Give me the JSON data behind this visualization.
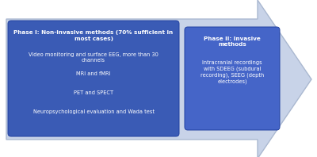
{
  "bg_color": "#ffffff",
  "arrow_color": "#c8d3e8",
  "arrow_edge_color": "#aab8d0",
  "box1_color": "#3a5bb5",
  "box2_color": "#4565c8",
  "box1_title": "Phase I: Non-invasive methods (70% sufficient in\nmost cases)",
  "box1_lines": [
    "Video monitoring and surface EEG, more than 30\nchannels",
    "MRI and fMRI",
    "PET and SPECT",
    "Neuropsychological evaluation and Wada test"
  ],
  "box2_title": "Phase II: Invasive\nmethods",
  "box2_lines": [
    "Intracranial recordings\nwith SDEEG (subdural\nrecording), SEEG (depth\nelectrodes)"
  ],
  "text_color": "#ffffff",
  "title_fontsize": 5.2,
  "body_fontsize": 4.8,
  "fig_w": 4.0,
  "fig_h": 1.98,
  "dpi": 100
}
